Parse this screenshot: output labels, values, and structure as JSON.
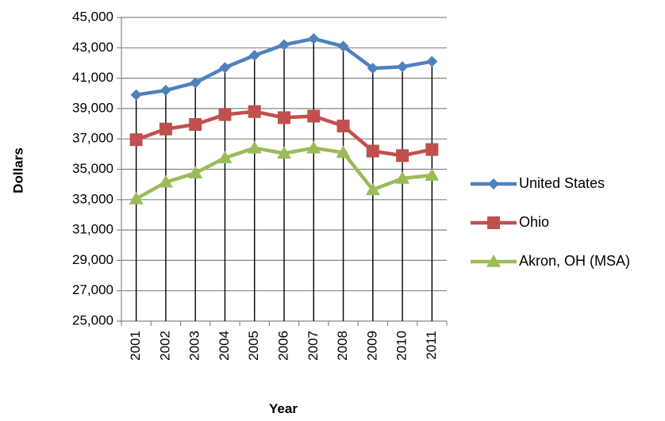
{
  "chart_data": {
    "type": "line",
    "title": "",
    "xlabel": "Year",
    "ylabel": "Dollars",
    "categories": [
      "2001",
      "2002",
      "2003",
      "2004",
      "2005",
      "2006",
      "2007",
      "2008",
      "2009",
      "2010",
      "2011"
    ],
    "ylim": [
      25000,
      45000
    ],
    "y_ticks": [
      25000,
      27000,
      29000,
      31000,
      33000,
      35000,
      37000,
      39000,
      41000,
      43000,
      45000
    ],
    "y_tick_labels": [
      "25,000",
      "27,000",
      "29,000",
      "31,000",
      "33,000",
      "35,000",
      "37,000",
      "39,000",
      "41,000",
      "43,000",
      "45,000"
    ],
    "grid": "horizontal and vertical",
    "legend_position": "right",
    "series": [
      {
        "name": "United States",
        "color": "#4F81BD",
        "marker": "diamond",
        "values": [
          39900,
          40200,
          40700,
          41700,
          42500,
          43200,
          43600,
          43100,
          41650,
          41750,
          42100
        ]
      },
      {
        "name": "Ohio",
        "color": "#C0504D",
        "marker": "square",
        "values": [
          36950,
          37650,
          37950,
          38600,
          38800,
          38400,
          38500,
          37850,
          36200,
          35900,
          36300
        ]
      },
      {
        "name": "Akron, OH (MSA)",
        "color": "#9BBB59",
        "marker": "triangle",
        "values": [
          33050,
          34150,
          34750,
          35750,
          36400,
          36050,
          36400,
          36100,
          33650,
          34400,
          34600
        ]
      }
    ]
  }
}
